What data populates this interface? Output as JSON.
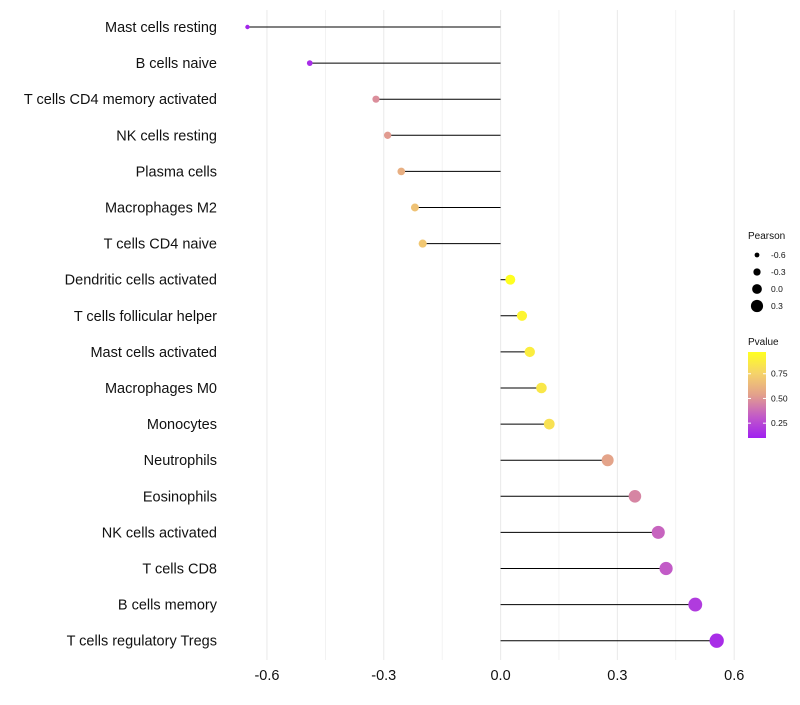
{
  "chart_data": {
    "type": "scatter",
    "subtype": "lollipop",
    "title": "",
    "xlabel": "",
    "ylabel": "",
    "xlim": [
      -0.7,
      0.62
    ],
    "xticks": [
      -0.6,
      -0.3,
      0.0,
      0.3,
      0.6
    ],
    "xtick_labels": [
      "-0.6",
      "-0.3",
      "0.0",
      "0.3",
      "0.6"
    ],
    "grid": true,
    "categories": [
      "Mast cells resting",
      "B cells naive",
      "T cells CD4 memory activated",
      "NK cells resting",
      "Plasma cells",
      "Macrophages M2",
      "T cells CD4 naive",
      "Dendritic cells activated",
      "T cells follicular helper",
      "Mast cells activated",
      "Macrophages M0",
      "Monocytes",
      "Neutrophils",
      "Eosinophils",
      "NK cells activated",
      "T cells CD8",
      "B cells memory",
      "T cells regulatory  Tregs"
    ],
    "pearson": [
      -0.65,
      -0.49,
      -0.32,
      -0.29,
      -0.255,
      -0.22,
      -0.2,
      0.025,
      0.055,
      0.075,
      0.105,
      0.125,
      0.275,
      0.345,
      0.405,
      0.425,
      0.5,
      0.555
    ],
    "pvalue": [
      0.12,
      0.15,
      0.48,
      0.52,
      0.6,
      0.68,
      0.7,
      0.98,
      0.92,
      0.88,
      0.85,
      0.82,
      0.55,
      0.45,
      0.35,
      0.32,
      0.2,
      0.15
    ],
    "legend_size": {
      "title": "Pearson",
      "values": [
        -0.6,
        -0.3,
        0.0,
        0.3
      ],
      "labels": [
        "-0.6",
        "-0.3",
        "0.0",
        "0.3"
      ]
    },
    "legend_color": {
      "title": "Pvalue",
      "range": [
        0.1,
        0.97
      ],
      "ticks": [
        0.25,
        0.5,
        0.75
      ],
      "labels": [
        "0.25",
        "0.50",
        "0.75"
      ],
      "colors": [
        "#A020F0",
        "#C25AC8",
        "#E3A08C",
        "#F5D36A",
        "#FFFF20"
      ]
    },
    "colors": {
      "stem": "#000000",
      "grid": "#EBEBEB"
    },
    "legend_position": "right"
  }
}
